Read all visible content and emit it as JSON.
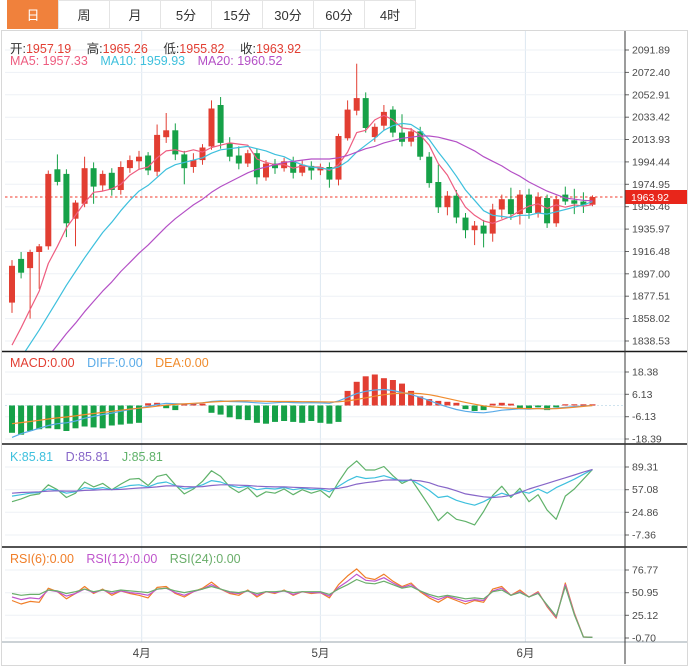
{
  "toolbar": {
    "tabs": [
      {
        "label": "日",
        "active": true
      },
      {
        "label": "周",
        "active": false
      },
      {
        "label": "月",
        "active": false
      },
      {
        "label": "5分",
        "active": false
      },
      {
        "label": "15分",
        "active": false
      },
      {
        "label": "30分",
        "active": false
      },
      {
        "label": "60分",
        "active": false
      },
      {
        "label": "4时",
        "active": false
      }
    ]
  },
  "info": {
    "open_label": "开:",
    "open": "1957.19",
    "high_label": "高:",
    "high": "1965.26",
    "low_label": "低:",
    "low": "1955.82",
    "close_label": "收:",
    "close": "1963.92"
  },
  "ma_labels": {
    "ma5": "MA5: 1957.33",
    "ma10": "MA10: 1959.93",
    "ma20": "MA20: 1960.52"
  },
  "indicator_labels": {
    "macd": "MACD:0.00",
    "diff": "DIFF:0.00",
    "dea": "DEA:0.00",
    "k": "K:85.81",
    "d": "D:85.81",
    "j": "J:85.81",
    "rsi6": "RSI(6):0.00",
    "rsi12": "RSI(12):0.00",
    "rsi24": "RSI(24):0.00"
  },
  "colors": {
    "up": "#e23e32",
    "down": "#16a148",
    "accent_tab": "#f0813c",
    "ma5": "#ee5d80",
    "ma10": "#3ec0dd",
    "ma20": "#b450c6",
    "diff": "#5aabe8",
    "dea": "#f08c2e",
    "k": "#3ec0dd",
    "d": "#8766c8",
    "j": "#60b26a",
    "rsi6": "#f07e28",
    "rsi12": "#bf55cc",
    "rsi24": "#6aae6a",
    "price_line": "#f0392b",
    "price_tag_bg": "#e8261b",
    "grid": "#edf1f6",
    "vgrid": "#dde7f0",
    "axis_text": "#4a4a4a",
    "label_dark": "#333333"
  },
  "chart_data": {
    "type": "candlestick-multi-panel",
    "x_axis": {
      "labels": [
        "4月",
        "5月",
        "6月"
      ],
      "label_indices": [
        14.3,
        34,
        56.6
      ]
    },
    "main": {
      "y_tick_labels": [
        "2091.89",
        "2072.40",
        "2052.91",
        "2033.42",
        "2013.93",
        "1994.44",
        "1974.95",
        "1955.46",
        "1935.97",
        "1916.48",
        "1897.00",
        "1877.51",
        "1858.02",
        "1838.53"
      ],
      "current_price": 1963.92,
      "current_price_label": "1963.92",
      "candles_ohlc": [
        [
          1872,
          1909,
          1863,
          1904
        ],
        [
          1910,
          1916,
          1893,
          1898
        ],
        [
          1902,
          1918,
          1858,
          1916
        ],
        [
          1916,
          1923,
          1884,
          1921
        ],
        [
          1921,
          1987,
          1918,
          1984
        ],
        [
          1988,
          2001,
          1974,
          1977
        ],
        [
          1984,
          1988,
          1929,
          1941
        ],
        [
          1945,
          1961,
          1921,
          1959
        ],
        [
          1958,
          1999,
          1955,
          1989
        ],
        [
          1989,
          1994,
          1958,
          1973
        ],
        [
          1974,
          1987,
          1969,
          1984
        ],
        [
          1985,
          1989,
          1965,
          1970
        ],
        [
          1970,
          1995,
          1966,
          1990
        ],
        [
          1989,
          2000,
          1985,
          1996
        ],
        [
          1995,
          2004,
          1988,
          1999
        ],
        [
          2000,
          2003,
          1983,
          1987
        ],
        [
          1986,
          2027,
          1982,
          2018
        ],
        [
          2016,
          2037,
          2011,
          2022
        ],
        [
          2022,
          2028,
          1996,
          2001
        ],
        [
          2001,
          2004,
          1975,
          1989
        ],
        [
          1990,
          2002,
          1985,
          1996
        ],
        [
          1996,
          2010,
          1992,
          2007
        ],
        [
          2008,
          2048,
          2005,
          2041
        ],
        [
          2044,
          2051,
          2006,
          2011
        ],
        [
          2011,
          2016,
          1995,
          1999
        ],
        [
          2000,
          2008,
          1988,
          1993
        ],
        [
          1993,
          2005,
          1990,
          2002
        ],
        [
          2002,
          2006,
          1975,
          1981
        ],
        [
          1981,
          1996,
          1978,
          1993
        ],
        [
          1993,
          1997,
          1984,
          1989
        ],
        [
          1989,
          1998,
          1986,
          1995
        ],
        [
          1995,
          1999,
          1980,
          1985
        ],
        [
          1985,
          1996,
          1982,
          1992
        ],
        [
          1991,
          1995,
          1979,
          1987
        ],
        [
          1987,
          1993,
          1983,
          1990
        ],
        [
          1990,
          1994,
          1972,
          1979
        ],
        [
          1979,
          2019,
          1974,
          2017
        ],
        [
          2015,
          2048,
          2013,
          2040
        ],
        [
          2039,
          2080,
          2035,
          2050
        ],
        [
          2050,
          2055,
          2020,
          2024
        ],
        [
          2016,
          2028,
          2012,
          2025
        ],
        [
          2026,
          2044,
          2022,
          2038
        ],
        [
          2040,
          2043,
          2016,
          2020
        ],
        [
          2020,
          2036,
          2008,
          2012
        ],
        [
          2012,
          2024,
          2008,
          2021
        ],
        [
          2021,
          2025,
          1996,
          1999
        ],
        [
          1999,
          2003,
          1972,
          1976
        ],
        [
          1977,
          1992,
          1950,
          1955
        ],
        [
          1955,
          1969,
          1948,
          1965
        ],
        [
          1965,
          1970,
          1941,
          1946
        ],
        [
          1946,
          1950,
          1928,
          1935
        ],
        [
          1935,
          1943,
          1922,
          1939
        ],
        [
          1939,
          1944,
          1920,
          1932
        ],
        [
          1932,
          1958,
          1925,
          1953
        ],
        [
          1953,
          1966,
          1945,
          1962
        ],
        [
          1962,
          1972,
          1944,
          1949
        ],
        [
          1949,
          1970,
          1940,
          1966
        ],
        [
          1966,
          1971,
          1945,
          1950
        ],
        [
          1950,
          1968,
          1946,
          1964
        ],
        [
          1963,
          1966,
          1937,
          1941
        ],
        [
          1941,
          1965,
          1938,
          1962
        ],
        [
          1966,
          1973,
          1957,
          1960
        ],
        [
          1961,
          1971,
          1949,
          1958
        ],
        [
          1960,
          1968,
          1950,
          1957
        ],
        [
          1957.19,
          1965.26,
          1955.82,
          1963.92
        ]
      ],
      "ma5": [
        1835,
        1850,
        1866,
        1882,
        1906,
        1921,
        1937,
        1948,
        1959,
        1968,
        1969,
        1971,
        1975,
        1983,
        1988,
        1990,
        1998,
        2004,
        2005,
        2003,
        2005,
        2003,
        2007,
        2009,
        2011,
        2010,
        2009,
        1997,
        1994,
        1992,
        1992,
        1989,
        1991,
        1990,
        1990,
        1987,
        1992,
        2003,
        2020,
        2022,
        2031,
        2035,
        2031,
        2024,
        2023,
        2018,
        2009,
        1993,
        1983,
        1968,
        1955,
        1948,
        1943,
        1941,
        1944,
        1947,
        1952,
        1956,
        1958,
        1954,
        1957,
        1955,
        1957,
        1956,
        1957.33
      ],
      "ma10": [
        1812,
        1824,
        1836,
        1848,
        1861,
        1874,
        1887,
        1899,
        1911,
        1922,
        1933,
        1942,
        1952,
        1961,
        1969,
        1974,
        1981,
        1988,
        1992,
        1994,
        1996,
        1998,
        2002,
        2005,
        2006,
        2007,
        2008,
        2006,
        2004,
        2001,
        1999,
        1995,
        1992,
        1990,
        1989,
        1988,
        1990,
        1995,
        2003,
        2009,
        2015,
        2022,
        2026,
        2028,
        2027,
        2022,
        2014,
        2003,
        1993,
        1982,
        1970,
        1961,
        1952,
        1948,
        1947,
        1946,
        1948,
        1948,
        1950,
        1949,
        1951,
        1953,
        1955,
        1957,
        1959.93
      ],
      "ma20": [
        1788,
        1797,
        1806,
        1815,
        1825,
        1835,
        1845,
        1854,
        1864,
        1873,
        1882,
        1890,
        1899,
        1907,
        1915,
        1922,
        1930,
        1938,
        1945,
        1951,
        1957,
        1962,
        1968,
        1973,
        1977,
        1981,
        1985,
        1988,
        1990,
        1992,
        1994,
        1995,
        1996,
        1997,
        1997,
        1997,
        1998,
        2000,
        2003,
        2006,
        2008,
        2011,
        2013,
        2015,
        2016,
        2017,
        2017,
        2016,
        2014,
        2012,
        2008,
        2004,
        1999,
        1995,
        1991,
        1986,
        1982,
        1977,
        1973,
        1969,
        1966,
        1963,
        1962,
        1961,
        1960.52
      ]
    },
    "macd": {
      "y_tick_labels": [
        "18.38",
        "6.13",
        "-6.13",
        "-18.39"
      ],
      "hist": [
        -15,
        -16,
        -14,
        -13,
        -12.5,
        -13,
        -14,
        -12.5,
        -11.5,
        -12,
        -12.5,
        -11,
        -10.5,
        -10,
        -9.5,
        1.2,
        1.5,
        -1.5,
        -2.5,
        1,
        1.2,
        1,
        -4,
        -5,
        -6.5,
        -7.5,
        -8,
        -9.5,
        -10,
        -9,
        -8.5,
        -9,
        -9.5,
        -8.5,
        -9.5,
        -10,
        -9,
        8,
        13,
        16,
        17,
        15,
        14,
        12,
        8,
        5,
        3.5,
        2.5,
        2,
        1.5,
        -2,
        -3,
        -2.5,
        1,
        1.5,
        1,
        -1.5,
        -2,
        -1,
        -2.5,
        -1,
        0.5,
        0.5,
        0.3,
        0
      ],
      "diff": [
        -17.5,
        -15.5,
        -14,
        -12.5,
        -11,
        -10,
        -9.5,
        -8.5,
        -7,
        -6,
        -5,
        -4.2,
        -3.2,
        -2.2,
        -1.5,
        -0.5,
        0.5,
        1.2,
        1,
        0.8,
        1,
        1.5,
        2.2,
        2.5,
        2.2,
        2,
        1.8,
        1.5,
        1.2,
        1.5,
        1.8,
        1.6,
        1.4,
        1.6,
        1.4,
        1.2,
        2.5,
        4.5,
        6.5,
        7.8,
        8.5,
        8.8,
        8.2,
        7.2,
        6,
        4.5,
        2.8,
        0.8,
        -0.8,
        -2.2,
        -3.2,
        -3.8,
        -4,
        -3.4,
        -2.6,
        -2.2,
        -1.8,
        -2,
        -1.6,
        -1.9,
        -1.5,
        -1,
        -0.6,
        -0.3,
        0
      ],
      "dea": [
        -10,
        -9.4,
        -8.8,
        -8.1,
        -7.4,
        -6.8,
        -6.3,
        -5.7,
        -5,
        -4.4,
        -3.8,
        -3.2,
        -2.6,
        -2,
        -1.5,
        -1,
        -0.4,
        0.2,
        0.6,
        0.9,
        1.2,
        1.5,
        1.9,
        2.2,
        2.4,
        2.5,
        2.5,
        2.4,
        2.3,
        2.2,
        2.2,
        2.2,
        2.1,
        2.1,
        2,
        1.9,
        2,
        2.5,
        3.3,
        4.2,
        5.1,
        5.9,
        6.5,
        6.8,
        6.8,
        6.5,
        5.9,
        5,
        3.9,
        2.8,
        1.7,
        0.7,
        -0.2,
        -0.8,
        -1.2,
        -1.5,
        -1.6,
        -1.7,
        -1.7,
        -1.8,
        -1.7,
        -1.4,
        -1,
        -0.5,
        0
      ]
    },
    "kdj": {
      "y_tick_labels": [
        "89.31",
        "57.08",
        "24.86",
        "-7.36"
      ],
      "k": [
        48,
        50,
        52,
        53,
        58,
        56,
        52,
        54,
        60,
        58,
        60,
        57,
        60,
        63,
        64,
        61,
        66,
        68,
        63,
        58,
        60,
        64,
        70,
        68,
        63,
        60,
        62,
        57,
        59,
        58,
        60,
        57,
        59,
        57,
        58,
        54,
        62,
        70,
        76,
        73,
        74,
        77,
        73,
        69,
        71,
        64,
        56,
        46,
        48,
        42,
        38,
        35,
        40,
        47,
        52,
        48,
        55,
        52,
        58,
        52,
        60,
        66,
        72,
        79,
        85.81
      ],
      "d": [
        52,
        53,
        53.5,
        54,
        55,
        55.5,
        55,
        55,
        56,
        56.5,
        57,
        57,
        57.5,
        58.5,
        59.5,
        60,
        61,
        62.5,
        62.5,
        61.5,
        61,
        61.5,
        63,
        64,
        64,
        63.5,
        63,
        62,
        61.5,
        61,
        61,
        60.5,
        60,
        59.5,
        59,
        58,
        59,
        61.5,
        65,
        67,
        68.5,
        70.5,
        71,
        70.5,
        70.5,
        69.5,
        67,
        62.5,
        59.5,
        55.5,
        51,
        49,
        47,
        46,
        47,
        49,
        53,
        58,
        62,
        66,
        70,
        74,
        78,
        82,
        85.81
      ],
      "j": [
        40,
        44,
        49,
        51,
        64,
        57,
        46,
        52,
        68,
        61,
        66,
        57,
        65,
        72,
        73,
        63,
        76,
        79,
        64,
        51,
        58,
        69,
        84,
        76,
        61,
        53,
        60,
        47,
        54,
        52,
        58,
        50,
        57,
        52,
        56,
        46,
        68,
        87,
        98,
        85,
        85,
        90,
        77,
        66,
        72,
        53,
        34,
        13,
        25,
        15,
        12,
        7,
        26,
        49,
        62,
        46,
        59,
        40,
        50,
        28,
        15,
        48,
        58,
        72,
        85.81
      ]
    },
    "rsi": {
      "y_tick_labels": [
        "76.77",
        "50.95",
        "25.12",
        "-0.70"
      ],
      "rsi6": [
        42,
        38,
        41,
        40,
        56,
        52,
        44,
        50,
        58,
        50,
        55,
        48,
        53,
        50,
        48,
        45,
        57,
        58,
        50,
        46,
        52,
        56,
        63,
        55,
        50,
        48,
        54,
        46,
        52,
        50,
        54,
        48,
        52,
        50,
        51,
        45,
        60,
        70,
        78,
        68,
        66,
        72,
        64,
        58,
        62,
        52,
        45,
        40,
        46,
        42,
        38,
        42,
        40,
        55,
        58,
        48,
        54,
        46,
        52,
        35,
        22,
        62,
        28,
        0.5,
        0
      ],
      "rsi12": [
        46,
        43,
        45,
        44,
        54,
        52,
        47,
        50,
        55,
        51,
        54,
        50,
        53,
        51,
        50,
        48,
        55,
        56,
        51,
        48,
        52,
        55,
        60,
        55,
        51,
        50,
        53,
        48,
        52,
        51,
        53,
        49,
        52,
        51,
        51,
        47,
        57,
        64,
        72,
        65,
        64,
        68,
        62,
        57,
        60,
        53,
        47,
        43,
        47,
        44,
        41,
        43,
        42,
        53,
        56,
        48,
        52,
        46,
        51,
        36,
        23,
        60,
        27,
        0.4,
        0
      ],
      "rsi24": [
        50,
        48,
        49,
        49,
        54,
        53,
        50,
        52,
        55,
        52,
        54,
        52,
        54,
        53,
        52,
        51,
        55,
        56,
        53,
        51,
        53,
        55,
        58,
        55,
        52,
        51,
        53,
        50,
        52,
        52,
        53,
        51,
        52,
        52,
        52,
        49,
        55,
        60,
        66,
        62,
        61,
        64,
        60,
        56,
        58,
        53,
        49,
        46,
        48,
        46,
        44,
        45,
        44,
        52,
        54,
        48,
        51,
        46,
        50,
        37,
        24,
        58,
        26,
        0.4,
        0
      ]
    }
  }
}
